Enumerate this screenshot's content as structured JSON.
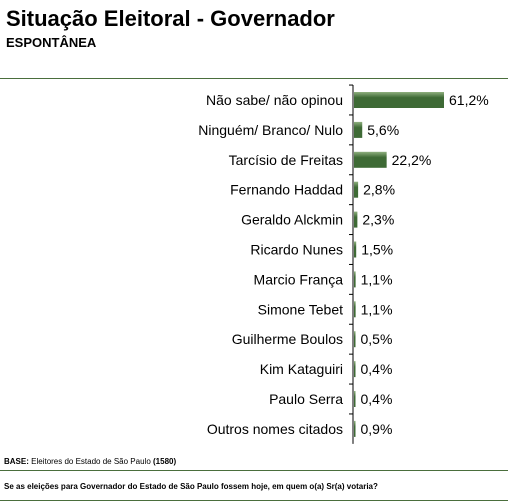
{
  "header": {
    "title": "Situação Eleitoral - Governador",
    "subtitle": "ESPONTÂNEA"
  },
  "footer": {
    "base_label": "BASE:",
    "base_text": "Eleitores do Estado de São Paulo",
    "base_count": "(1580)",
    "question": "Se as eleições para Governador do Estado de São Paulo fossem hoje, em quem o(a) Sr(a) votaria?"
  },
  "colors": {
    "bar": "#3e6a35",
    "bar_highlight": "#8fb07f",
    "axis": "#000000",
    "rule": "#4a6e3c"
  },
  "chart_data": {
    "type": "bar",
    "orientation": "horizontal",
    "categories": [
      "Não sabe/ não opinou",
      "Ninguém/ Branco/ Nulo",
      "Tarcísio de Freitas",
      "Fernando Haddad",
      "Geraldo Alckmin",
      "Ricardo Nunes",
      "Marcio França",
      "Simone Tebet",
      "Guilherme Boulos",
      "Kim Kataguiri",
      "Paulo Serra",
      "Outros nomes citados"
    ],
    "values": [
      61.2,
      5.6,
      22.2,
      2.8,
      2.3,
      1.5,
      1.1,
      1.1,
      0.5,
      0.4,
      0.4,
      0.9
    ],
    "value_labels": [
      "61,2%",
      "5,6%",
      "22,2%",
      "2,8%",
      "2,3%",
      "1,5%",
      "1,1%",
      "1,1%",
      "0,5%",
      "0,4%",
      "0,4%",
      "0,9%"
    ],
    "xlim": [
      0,
      61.2
    ],
    "grid": false,
    "legend": "none"
  }
}
